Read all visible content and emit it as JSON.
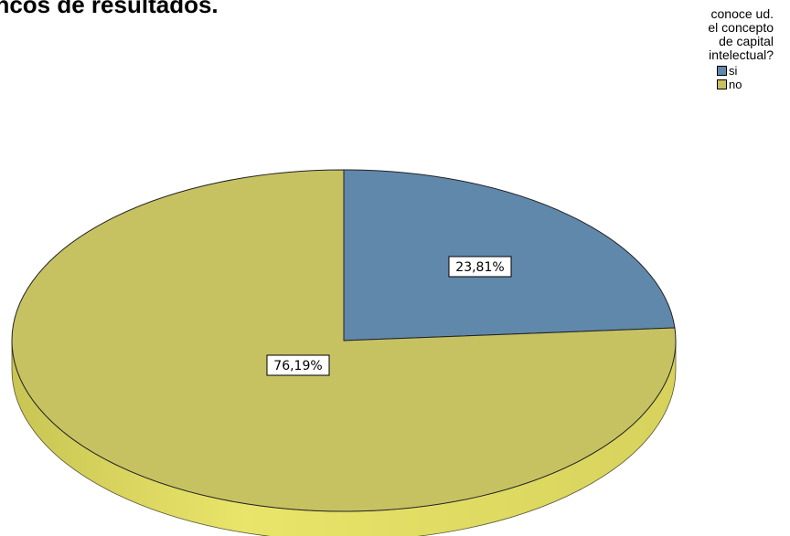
{
  "page": {
    "heading": "ancos de resultados."
  },
  "chart_data": {
    "type": "pie",
    "style": "3d",
    "legend_title": "conoce ud.\nel concepto\nde capital\nintelectual?",
    "legend_position": "top-right",
    "slices": [
      {
        "name": "si",
        "value": 23.81,
        "label": "23,81%",
        "color": "#6088ab"
      },
      {
        "name": "no",
        "value": 76.19,
        "label": "76,19%",
        "color": "#c6c262"
      }
    ]
  }
}
